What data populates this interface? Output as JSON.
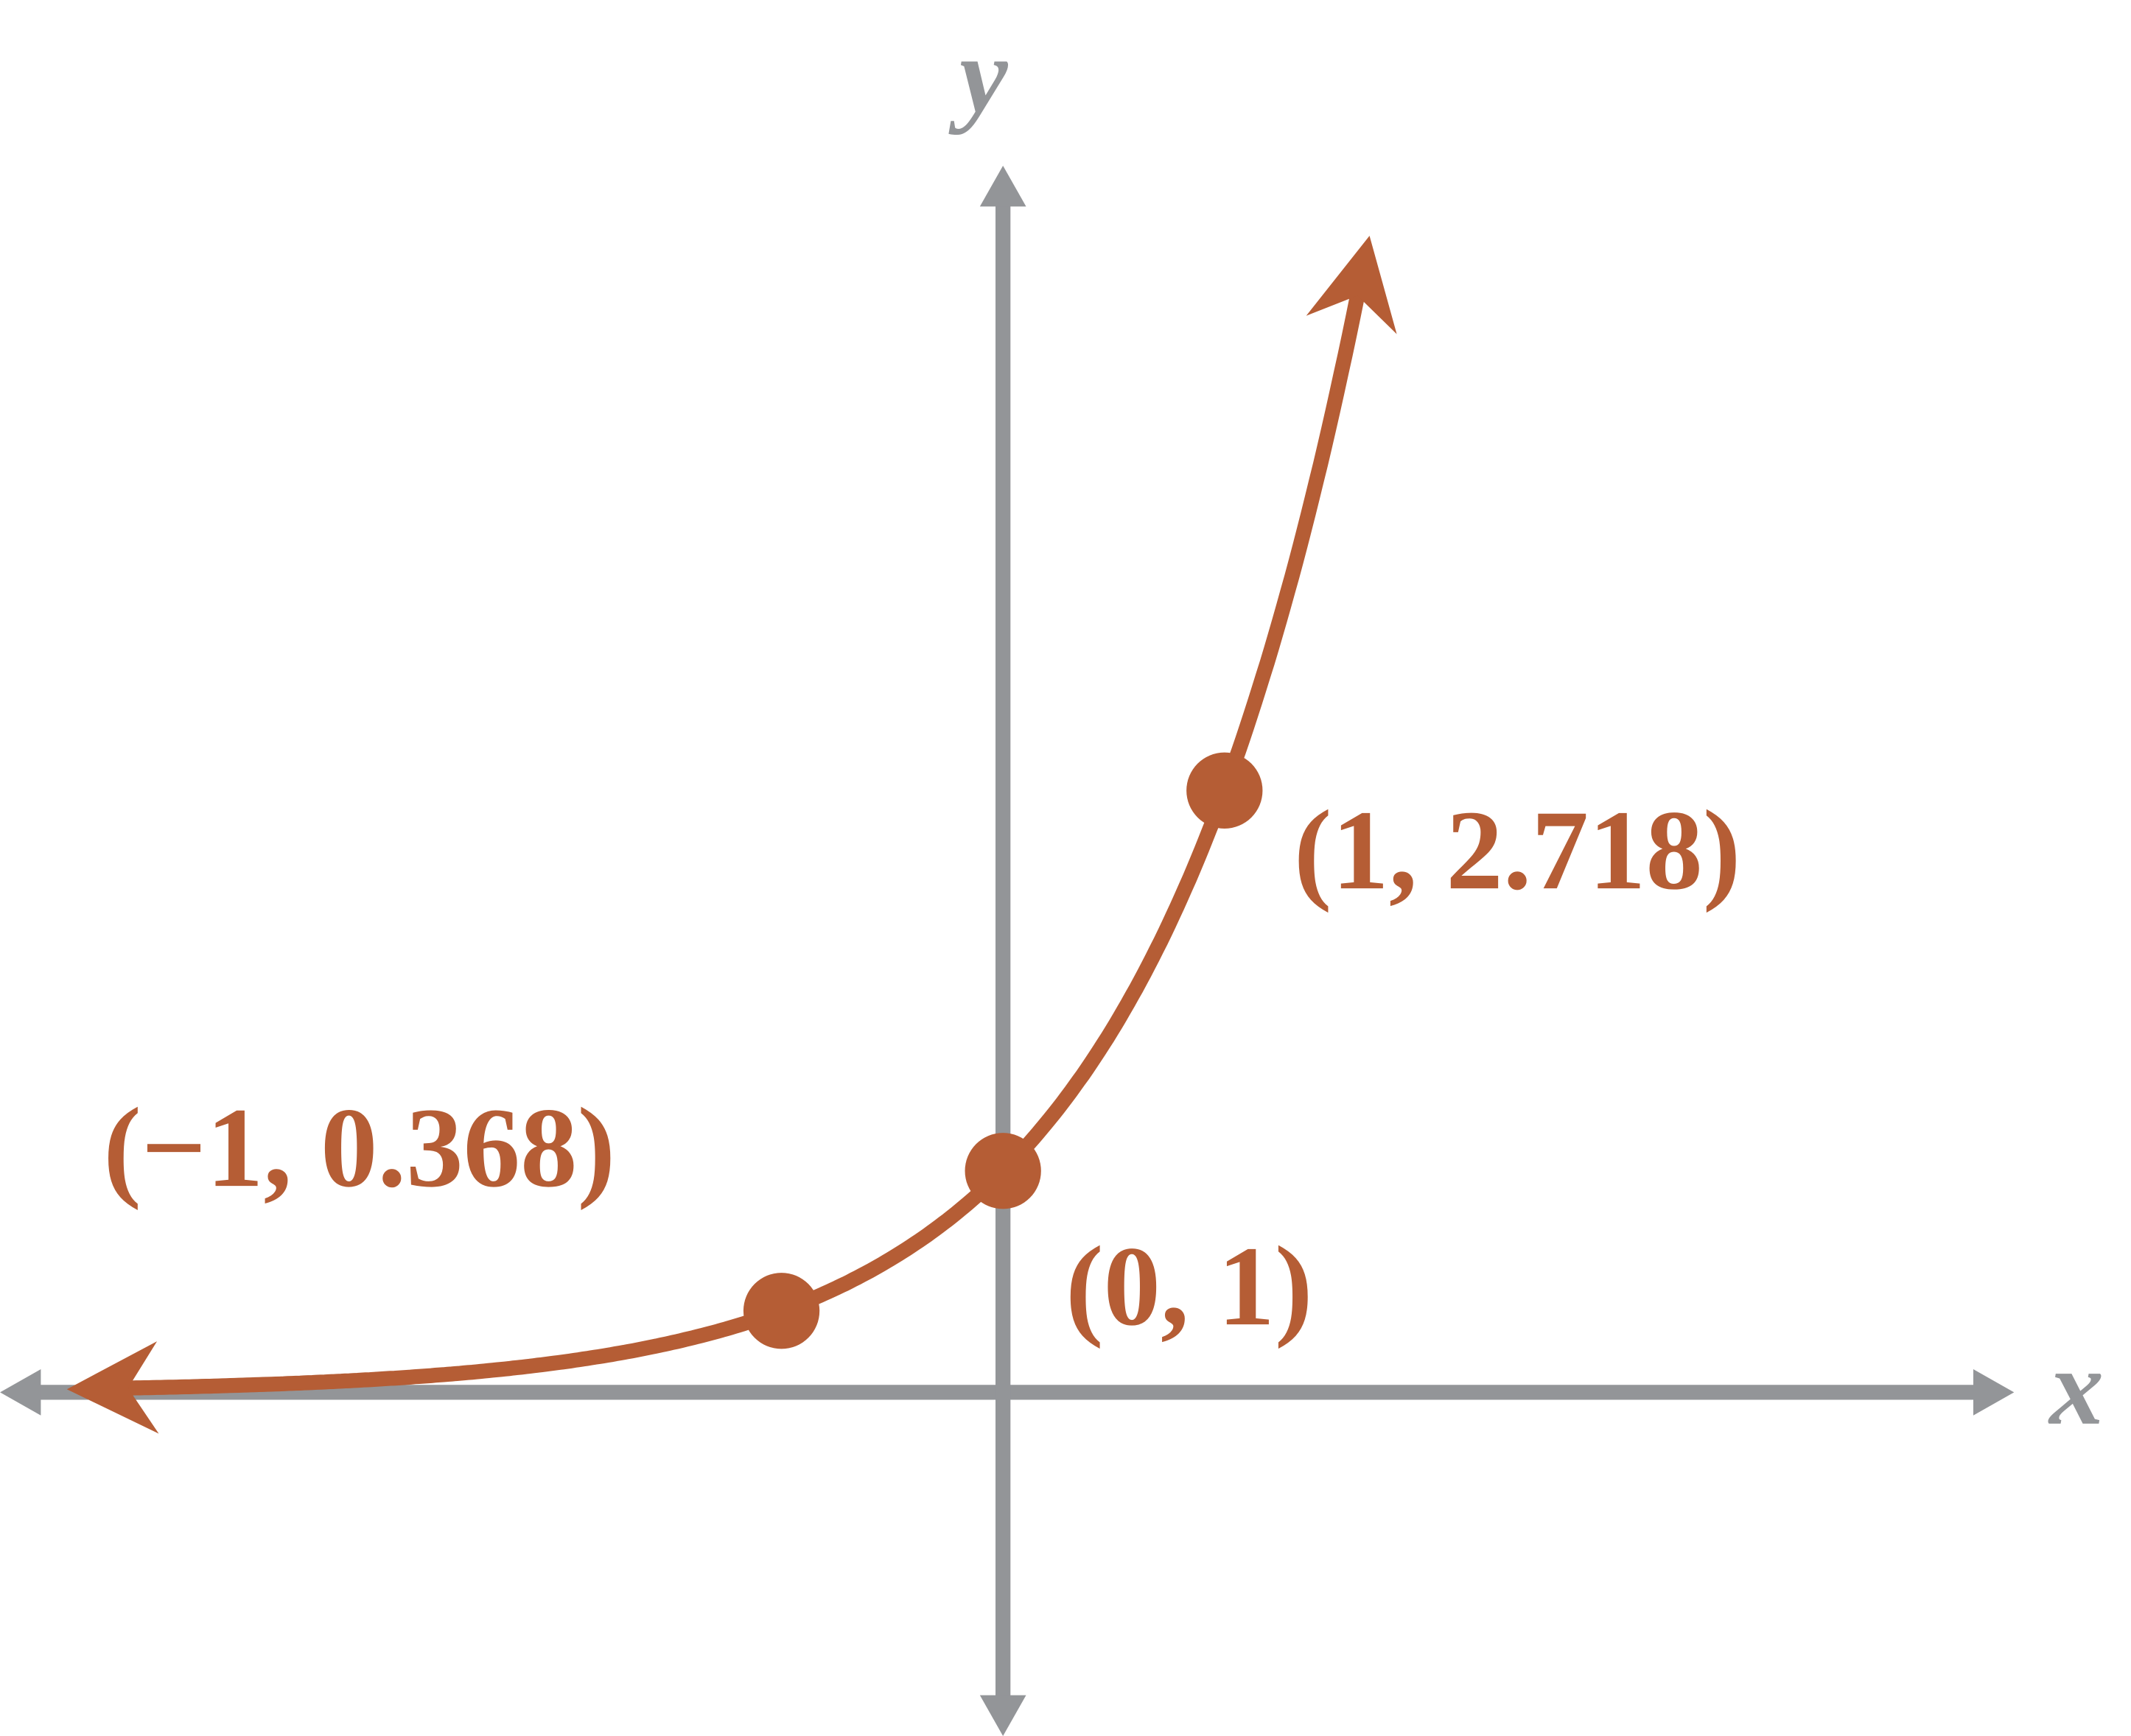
{
  "chart_data": {
    "type": "line",
    "function": "y = e^x",
    "xlabel": "x",
    "ylabel": "y",
    "xlim": [
      -4.53,
      4.4
    ],
    "ylim": [
      -1.45,
      5.35
    ],
    "curve_x_range": [
      -3.95,
      1.6
    ],
    "grid": false,
    "points": [
      {
        "x": -1,
        "y": 0.368,
        "label": "(−1, 0.368)"
      },
      {
        "x": 0,
        "y": 1,
        "label": "(0, 1)"
      },
      {
        "x": 1,
        "y": 2.718,
        "label": "(1, 2.718)"
      }
    ],
    "colors": {
      "curve": "#b55d35",
      "axes": "#939598"
    }
  }
}
